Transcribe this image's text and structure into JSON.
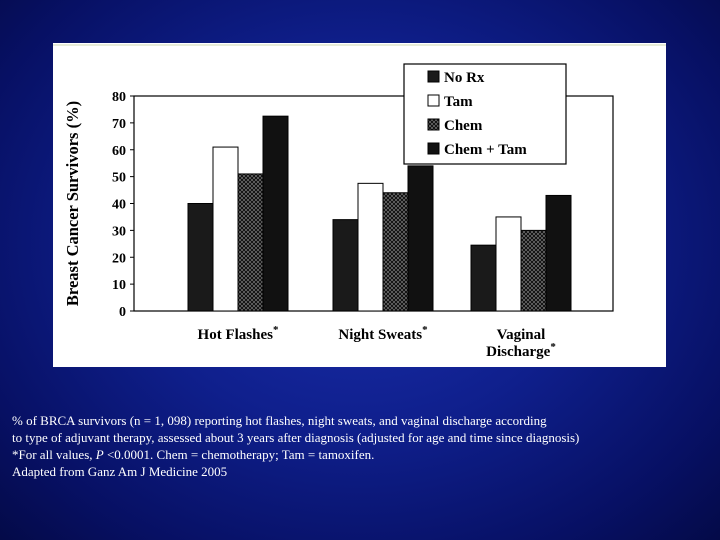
{
  "chart_data": {
    "type": "bar",
    "title": "",
    "xlabel": "",
    "ylabel": "Breast Cancer Survivors (%)",
    "ylim": [
      0,
      80
    ],
    "yticks": [
      "0",
      "10",
      "20",
      "30",
      "40",
      "50",
      "60",
      "70",
      "80"
    ],
    "categories": [
      {
        "lines": [
          "Hot Flashes"
        ],
        "mark": "*"
      },
      {
        "lines": [
          "Night Sweats"
        ],
        "mark": "*"
      },
      {
        "lines": [
          "Vaginal",
          "Discharge"
        ],
        "mark": "*"
      }
    ],
    "series": [
      {
        "name": "No Rx",
        "values": [
          40,
          34,
          24.5
        ],
        "fill": "#1a1a1a",
        "pattern": "solid"
      },
      {
        "name": "Tam",
        "values": [
          61,
          47.5,
          35
        ],
        "fill": "#ffffff",
        "pattern": "solid"
      },
      {
        "name": "Chem",
        "values": [
          51,
          44,
          30
        ],
        "fill": "#222222",
        "pattern": "checker"
      },
      {
        "name": "Chem + Tam",
        "values": [
          72.5,
          54,
          43
        ],
        "fill": "#111111",
        "pattern": "solid"
      }
    ],
    "legend_position": "top-right",
    "grid": false
  },
  "caption": {
    "line1": "% of BRCA survivors (n = 1, 098) reporting hot flashes, night sweats, and vaginal discharge according",
    "line2": "to type of adjuvant therapy, assessed about 3 years after diagnosis (adjusted for age and time since diagnosis)",
    "line3_prefix": "*For all values, ",
    "line3_p": "P",
    "line3_suffix": " <0.0001. Chem = chemotherapy; Tam = tamoxifen.",
    "line4": "Adapted from Ganz Am J Medicine 2005"
  }
}
